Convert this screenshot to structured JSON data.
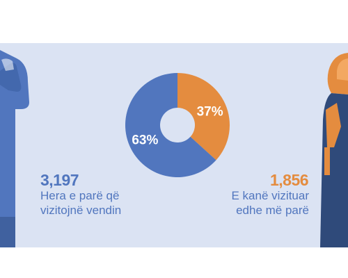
{
  "colors": {
    "background_panel": "#dbe3f3",
    "first_time_blue": "#5176be",
    "returning_orange": "#e48c3f",
    "figure_dark": "#2f4a7a"
  },
  "icons": {
    "left": "standing-person-thinking-icon",
    "right": "standing-woman-headscarf-icon"
  },
  "chart_data": {
    "type": "pie",
    "variant": "donut",
    "series": [
      {
        "label": "Hera e parë që vizitojnë vendin",
        "value": 3197,
        "percent": 63,
        "percent_label": "63%",
        "color": "#5176be"
      },
      {
        "label": "E kanë vizituar edhe më parë",
        "value": 1856,
        "percent": 37,
        "percent_label": "37%",
        "color": "#e48c3f"
      }
    ]
  },
  "left_stat": {
    "value": "3,197",
    "label_line1": "Hera e parë që",
    "label_line2": "vizitojnë vendin"
  },
  "right_stat": {
    "value": "1,856",
    "label_line1": "E kanë vizituar",
    "label_line2": "edhe më parë"
  }
}
